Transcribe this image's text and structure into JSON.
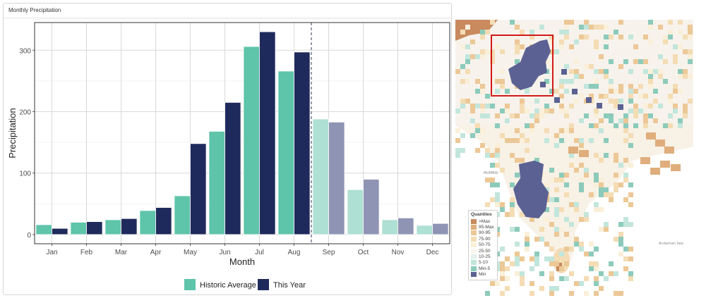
{
  "panel": {
    "title": "Monthly Precipitation"
  },
  "chart_data": {
    "type": "bar",
    "title": "",
    "xlabel": "Month",
    "ylabel": "Precipitation",
    "ylim": [
      -15,
      345
    ],
    "yticks": [
      0,
      100,
      200,
      300
    ],
    "categories": [
      "Jan",
      "Feb",
      "Mar",
      "Apr",
      "May",
      "Jun",
      "Jul",
      "Aug",
      "Sep",
      "Oct",
      "Nov",
      "Dec"
    ],
    "series": [
      {
        "name": "Historic Average",
        "values": [
          16,
          20,
          24,
          39,
          63,
          168,
          306,
          266,
          188,
          73,
          24,
          15
        ],
        "color": "#5ec4aa",
        "faded_color": "#aee0d3"
      },
      {
        "name": "This Year",
        "values": [
          10,
          21,
          26,
          44,
          148,
          215,
          330,
          297,
          183,
          90,
          27,
          18
        ],
        "color": "#1f2a5c",
        "faded_color": "#9094b4"
      }
    ],
    "current_month_marker": "Aug",
    "faded_months": [
      "Sep",
      "Oct",
      "Nov",
      "Dec"
    ],
    "grid": true,
    "legend_position": "bottom"
  },
  "map": {
    "legend_title": "Quantiles",
    "legend": [
      {
        "label": ">Max",
        "color": "#c98a5e"
      },
      {
        "label": "95-Max",
        "color": "#dfae7c"
      },
      {
        "label": "90-95",
        "color": "#ecc897"
      },
      {
        "label": "75-90",
        "color": "#f4dcb4"
      },
      {
        "label": "50-75",
        "color": "#faefd9"
      },
      {
        "label": "25-50",
        "color": "#fbf6ee"
      },
      {
        "label": "10-25",
        "color": "#e4f3ee"
      },
      {
        "label": "5-10",
        "color": "#c3e6dc"
      },
      {
        "label": "Min-5",
        "color": "#8ccbbb"
      },
      {
        "label": "Min",
        "color": "#5b6192"
      }
    ],
    "place_labels": [
      "MUMBAI",
      "Andaman Sea"
    ]
  }
}
